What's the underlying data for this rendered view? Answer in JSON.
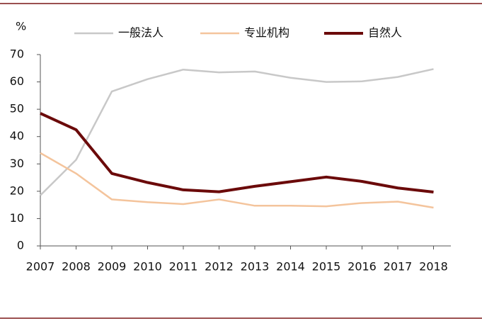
{
  "chart_data": {
    "type": "line",
    "unit_label": "%",
    "categories": [
      "2007",
      "2008",
      "2009",
      "2010",
      "2011",
      "2012",
      "2013",
      "2014",
      "2015",
      "2016",
      "2017",
      "2018"
    ],
    "series": [
      {
        "name": "一般法人",
        "color": "#c8c8c8",
        "width": 2.5,
        "values": [
          18.5,
          31.5,
          56.5,
          61,
          64.5,
          63.5,
          63.8,
          61.5,
          60,
          60.2,
          61.8,
          64.7
        ]
      },
      {
        "name": "专业机构",
        "color": "#f4c49c",
        "width": 2.5,
        "values": [
          34,
          26.5,
          17,
          16,
          15.3,
          17,
          14.7,
          14.7,
          14.5,
          15.7,
          16.2,
          14
        ]
      },
      {
        "name": "自然人",
        "color": "#6b0a0a",
        "width": 4,
        "values": [
          48.5,
          42.5,
          26.5,
          23.2,
          20.5,
          19.8,
          21.8,
          23.5,
          25.2,
          23.6,
          21.2,
          19.7
        ]
      }
    ],
    "ylim": [
      0,
      70
    ],
    "yticks": [
      0,
      10,
      20,
      30,
      40,
      50,
      60,
      70
    ],
    "legend": "top"
  }
}
